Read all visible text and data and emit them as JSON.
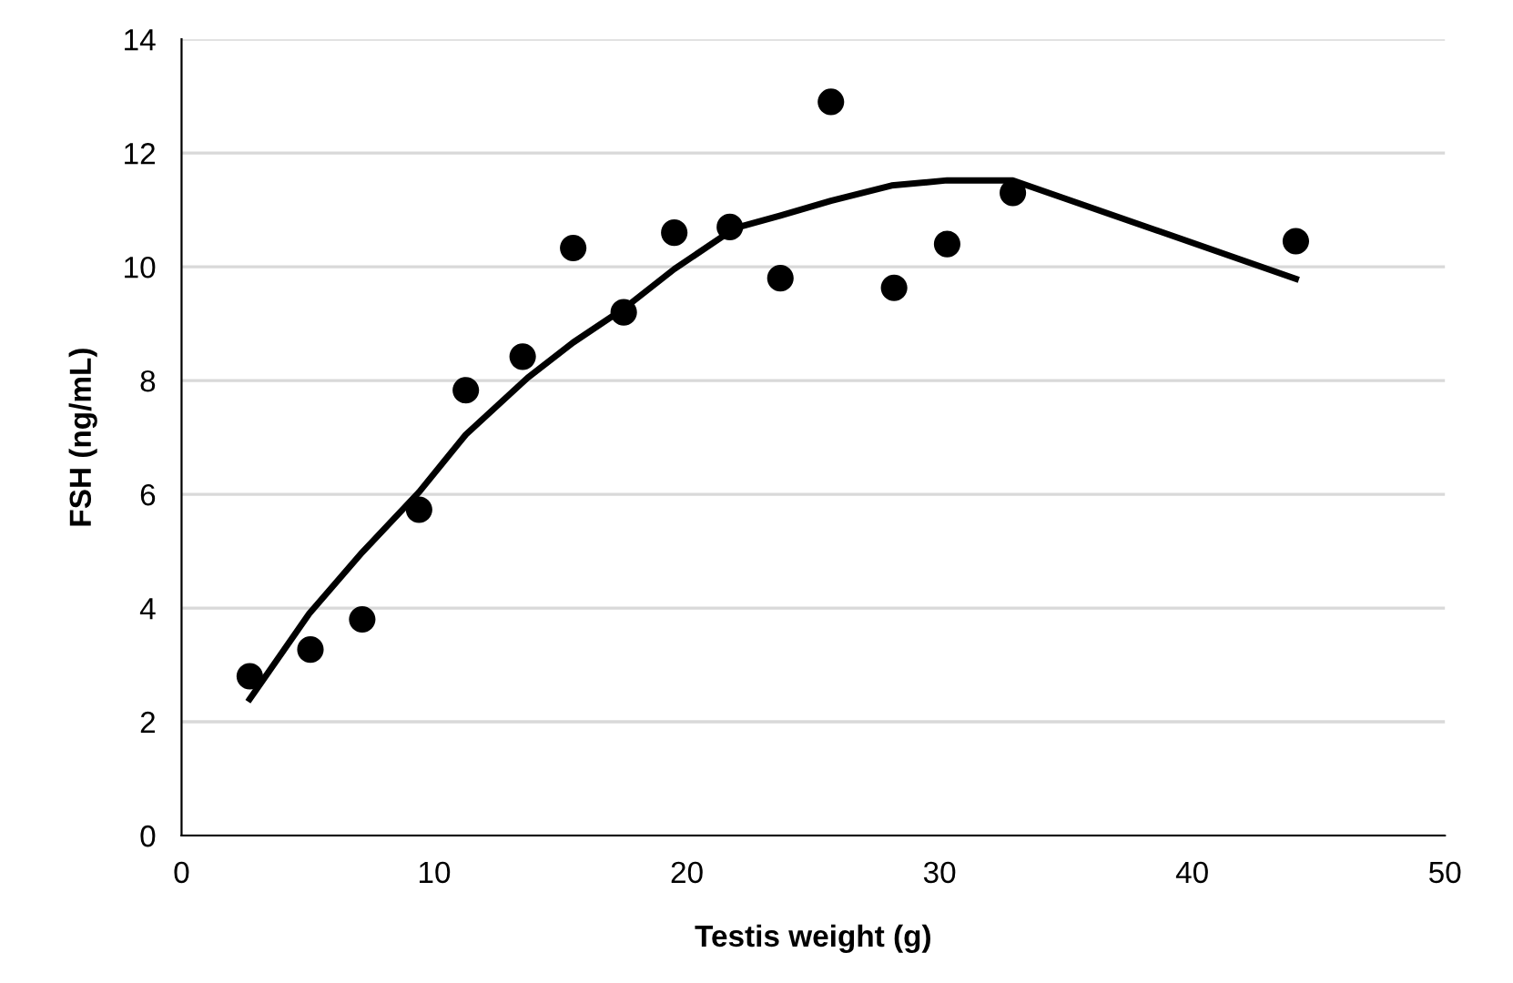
{
  "chart_data": {
    "type": "scatter",
    "xlabel": "Testis weight (g)",
    "ylabel": "FSH (ng/mL)",
    "xlim": [
      0,
      50
    ],
    "xticks": [
      0,
      10,
      20,
      30,
      40,
      50
    ],
    "ylim": [
      0,
      14
    ],
    "yticks": [
      0,
      2,
      4,
      6,
      8,
      10,
      12,
      14
    ],
    "grid": "y",
    "marker": "circle",
    "series": [
      {
        "color": "#000000",
        "x": [
          2.7,
          5.1,
          7.15,
          9.4,
          11.25,
          13.5,
          15.5,
          17.5,
          19.5,
          21.7,
          23.7,
          25.7,
          28.2,
          30.3,
          32.9,
          44.1
        ],
        "values": [
          2.8,
          3.27,
          3.8,
          5.73,
          7.83,
          8.42,
          10.33,
          9.2,
          10.6,
          10.7,
          9.8,
          12.9,
          9.63,
          10.4,
          11.3,
          10.45
        ]
      },
      {
        "type": "line",
        "color": "#000000",
        "marker": "none",
        "line_style": "solid",
        "x": [
          2.7,
          5.05,
          7.15,
          9.4,
          11.25,
          13.7,
          15.5,
          17.55,
          19.5,
          21.9,
          23.7,
          25.7,
          28.1,
          30.3,
          32.9,
          44.1
        ],
        "values": [
          2.4,
          3.9,
          4.98,
          6.04,
          7.05,
          8.05,
          8.67,
          9.28,
          9.96,
          10.68,
          10.9,
          11.16,
          11.43,
          11.52,
          11.52,
          9.79
        ]
      }
    ]
  }
}
